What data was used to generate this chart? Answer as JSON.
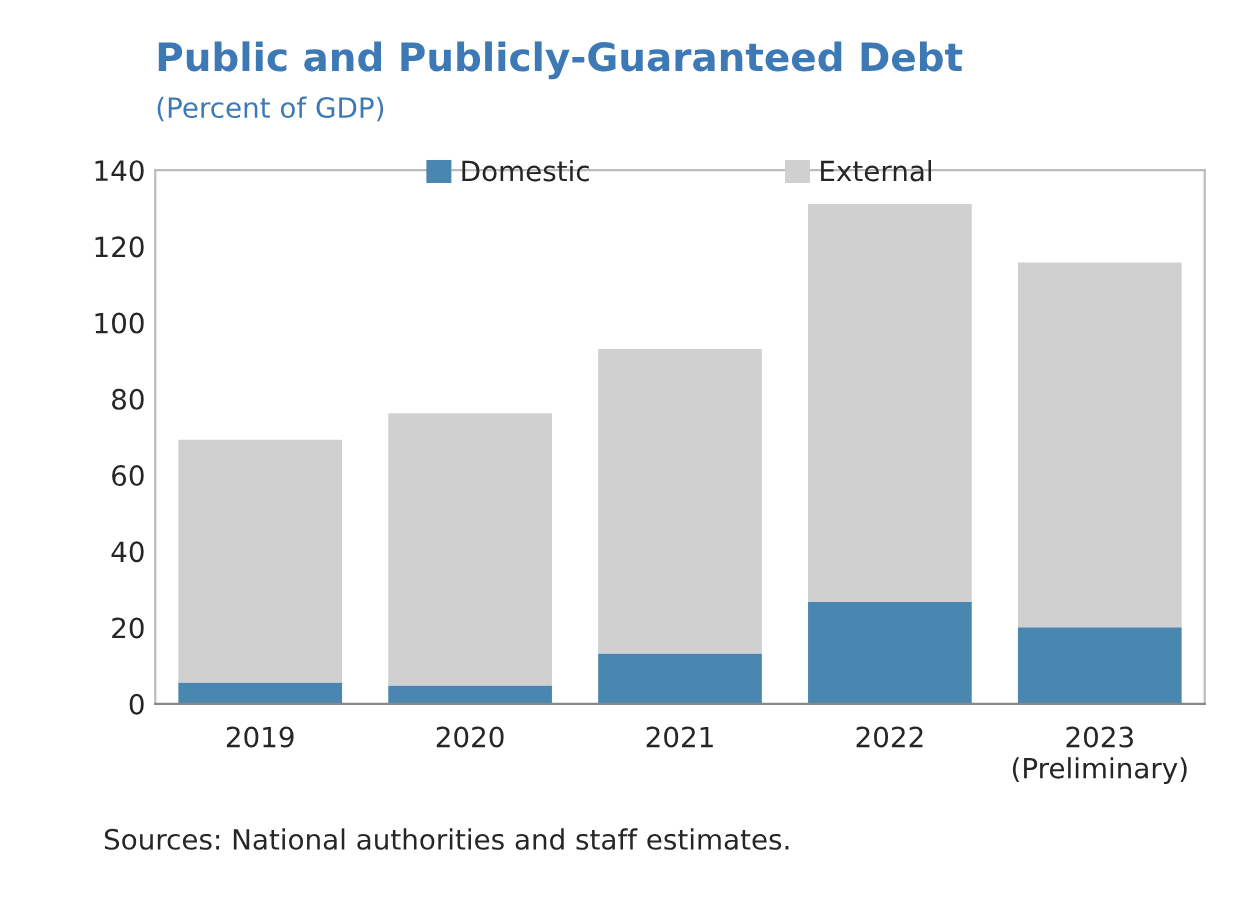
{
  "chart_data": {
    "type": "bar",
    "title": "Public and Publicly-Guaranteed Debt",
    "subtitle": "(Percent of GDP)",
    "categories": [
      "2019",
      "2020",
      "2021",
      "2022",
      "2023\n(Preliminary)"
    ],
    "stacked": true,
    "series": [
      {
        "name": "Domestic",
        "color": "#4a87b0",
        "values": [
          5.6,
          4.8,
          13.2,
          26.8,
          20.1
        ]
      },
      {
        "name": "External",
        "color": "#d0d0d0",
        "values": [
          63.7,
          71.4,
          79.9,
          104.3,
          95.7
        ]
      }
    ],
    "ylim": [
      0,
      140
    ],
    "yticks": [
      0,
      20,
      40,
      60,
      80,
      100,
      120,
      140
    ],
    "legend": "top",
    "grid": false,
    "annotations": [
      "Sources: National authorities and staff estimates."
    ]
  }
}
